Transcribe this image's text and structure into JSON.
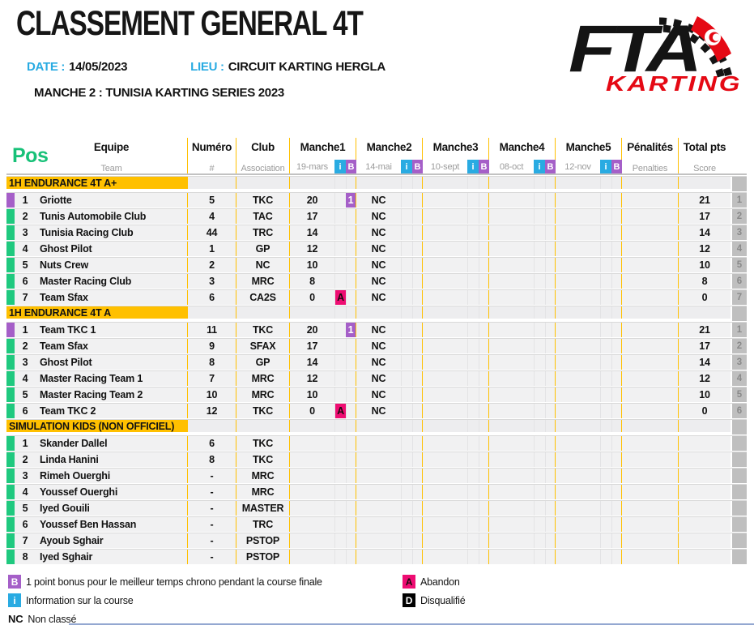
{
  "page": {
    "title": "CLASSEMENT GENERAL 4T",
    "date_label": "DATE :",
    "date_value": "14/05/2023",
    "lieu_label": "LIEU :",
    "lieu_value": "CIRCUIT KARTING HERGLA",
    "manche_line": "MANCHE 2 : TUNISIA KARTING SERIES 2023"
  },
  "logo": {
    "fta": "FTA",
    "karting": "KARTING"
  },
  "colors": {
    "accent_orange": "#ffc000",
    "info_blue": "#29abe2",
    "bonus_purple": "#a55fc8",
    "abandon_pink": "#ee0d72",
    "disqualified_black": "#000000",
    "indicator_green": "#1fc97f",
    "pos_green": "#17c178",
    "rank_column_gray": "#bfbfbf"
  },
  "table": {
    "pos_header": "Pos",
    "badge_i": "i",
    "badge_b": "B",
    "columns": [
      {
        "label": "Equipe",
        "sub": "Team"
      },
      {
        "label": "Numéro",
        "sub": "#"
      },
      {
        "label": "Club",
        "sub": "Association"
      },
      {
        "label": "Manche1",
        "sub": "19-mars"
      },
      {
        "label": "Manche2",
        "sub": "14-mai"
      },
      {
        "label": "Manche3",
        "sub": "10-sept"
      },
      {
        "label": "Manche4",
        "sub": "08-oct"
      },
      {
        "label": "Manche5",
        "sub": "12-nov"
      },
      {
        "label": "Pénalités",
        "sub": "Penalties"
      },
      {
        "label": "Total pts",
        "sub": "Score"
      }
    ],
    "sections": [
      {
        "name": "1H ENDURANCE 4T A+",
        "rows": [
          {
            "pos": "1",
            "team": "Griotte",
            "number": "5",
            "club": "TKC",
            "m1": "20",
            "m1_b": "1",
            "m2": "NC",
            "total": "21",
            "rank": "1",
            "indicator": "purple"
          },
          {
            "pos": "2",
            "team": "Tunis Automobile Club",
            "number": "4",
            "club": "TAC",
            "m1": "17",
            "m2": "NC",
            "total": "17",
            "rank": "2",
            "indicator": "green"
          },
          {
            "pos": "3",
            "team": "Tunisia Racing Club",
            "number": "44",
            "club": "TRC",
            "m1": "14",
            "m2": "NC",
            "total": "14",
            "rank": "3",
            "indicator": "green"
          },
          {
            "pos": "4",
            "team": "Ghost Pilot",
            "number": "1",
            "club": "GP",
            "m1": "12",
            "m2": "NC",
            "total": "12",
            "rank": "4",
            "indicator": "green"
          },
          {
            "pos": "5",
            "team": "Nuts Crew",
            "number": "2",
            "club": "NC",
            "m1": "10",
            "m2": "NC",
            "total": "10",
            "rank": "5",
            "indicator": "green"
          },
          {
            "pos": "6",
            "team": "Master Racing Club",
            "number": "3",
            "club": "MRC",
            "m1": "8",
            "m2": "NC",
            "total": "8",
            "rank": "6",
            "indicator": "green"
          },
          {
            "pos": "7",
            "team": "Team Sfax",
            "number": "6",
            "club": "CA2S",
            "m1": "0",
            "m1_i": "A",
            "m2": "NC",
            "total": "0",
            "rank": "7",
            "indicator": "green"
          }
        ]
      },
      {
        "name": "1H ENDURANCE 4T A",
        "rows": [
          {
            "pos": "1",
            "team": "Team TKC 1",
            "number": "11",
            "club": "TKC",
            "m1": "20",
            "m1_b": "1",
            "m2": "NC",
            "total": "21",
            "rank": "1",
            "indicator": "purple"
          },
          {
            "pos": "2",
            "team": "Team Sfax",
            "number": "9",
            "club": "SFAX",
            "m1": "17",
            "m2": "NC",
            "total": "17",
            "rank": "2",
            "indicator": "green"
          },
          {
            "pos": "3",
            "team": "Ghost Pilot",
            "number": "8",
            "club": "GP",
            "m1": "14",
            "m2": "NC",
            "total": "14",
            "rank": "3",
            "indicator": "green"
          },
          {
            "pos": "4",
            "team": "Master Racing Team 1",
            "number": "7",
            "club": "MRC",
            "m1": "12",
            "m2": "NC",
            "total": "12",
            "rank": "4",
            "indicator": "green"
          },
          {
            "pos": "5",
            "team": "Master Racing Team 2",
            "number": "10",
            "club": "MRC",
            "m1": "10",
            "m2": "NC",
            "total": "10",
            "rank": "5",
            "indicator": "green"
          },
          {
            "pos": "6",
            "team": "Team TKC 2",
            "number": "12",
            "club": "TKC",
            "m1": "0",
            "m1_i": "A",
            "m2": "NC",
            "total": "0",
            "rank": "6",
            "indicator": "green"
          }
        ]
      },
      {
        "name": "SIMULATION KIDS (NON OFFICIEL)",
        "rows": [
          {
            "pos": "1",
            "team": "Skander Dallel",
            "number": "6",
            "club": "TKC",
            "indicator": "green"
          },
          {
            "pos": "2",
            "team": "Linda Hanini",
            "number": "8",
            "club": "TKC",
            "indicator": "green"
          },
          {
            "pos": "3",
            "team": "Rimeh Ouerghi",
            "number": "-",
            "club": "MRC",
            "indicator": "green"
          },
          {
            "pos": "4",
            "team": "Youssef Ouerghi",
            "number": "-",
            "club": "MRC",
            "indicator": "green"
          },
          {
            "pos": "5",
            "team": "Iyed Gouili",
            "number": "-",
            "club": "MASTER",
            "indicator": "green"
          },
          {
            "pos": "6",
            "team": "Youssef Ben Hassan",
            "number": "-",
            "club": "TRC",
            "indicator": "green"
          },
          {
            "pos": "7",
            "team": "Ayoub Sghair",
            "number": "-",
            "club": "PSTOP",
            "indicator": "green"
          },
          {
            "pos": "8",
            "team": "Iyed Sghair",
            "number": "-",
            "club": "PSTOP",
            "indicator": "green"
          }
        ]
      }
    ]
  },
  "legend": {
    "bonus_badge": "B",
    "bonus_text": "1 point bonus pour le meilleur temps chrono pendant la course finale",
    "info_badge": "i",
    "info_text": "Information sur la course",
    "nc_badge": "NC",
    "nc_text": "Non classé",
    "abandon_badge": "A",
    "abandon_text": "Abandon",
    "dq_badge": "D",
    "dq_text": "Disqualifié"
  }
}
